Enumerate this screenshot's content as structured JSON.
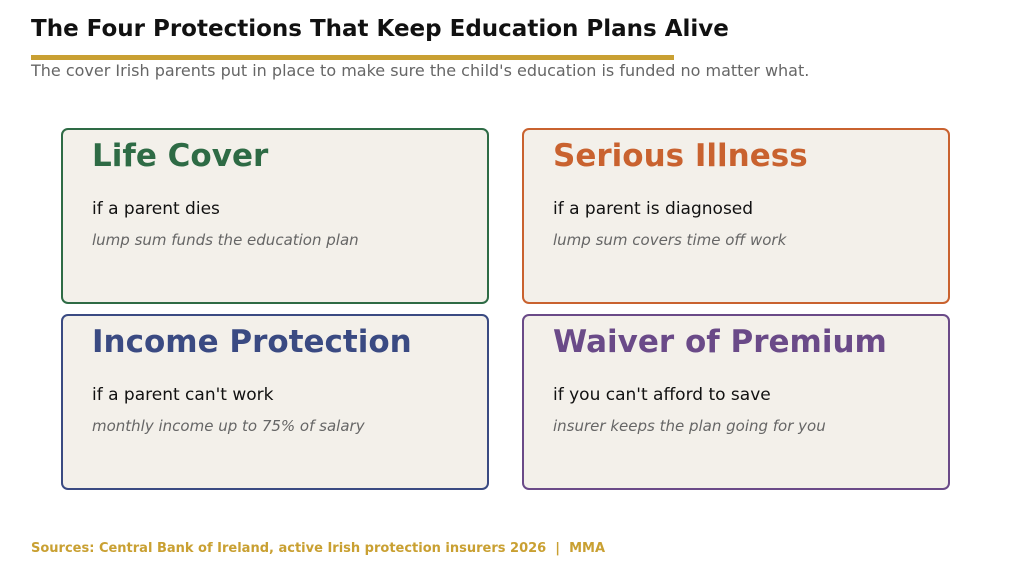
{
  "header": {
    "title": "The Four Protections That Keep Education Plans Alive",
    "subtitle": "The cover Irish parents put in place to make sure the child's education is funded no matter what."
  },
  "cards": [
    {
      "title": "Life Cover",
      "condition": "if a parent dies",
      "benefit": "lump sum funds the education plan",
      "color": "#2e6b45"
    },
    {
      "title": "Serious Illness",
      "condition": "if a parent is diagnosed",
      "benefit": "lump sum covers time off work",
      "color": "#c9622f"
    },
    {
      "title": "Income Protection",
      "condition": "if a parent can't work",
      "benefit": "monthly income up to 75% of salary",
      "color": "#3a4a82"
    },
    {
      "title": "Waiver of Premium",
      "condition": "if you can't afford to save",
      "benefit": "insurer keeps the plan going for you",
      "color": "#6a4a88"
    }
  ],
  "footer": {
    "source": "Sources: Central Bank of Ireland, active Irish protection insurers 2026  |  MMA"
  }
}
